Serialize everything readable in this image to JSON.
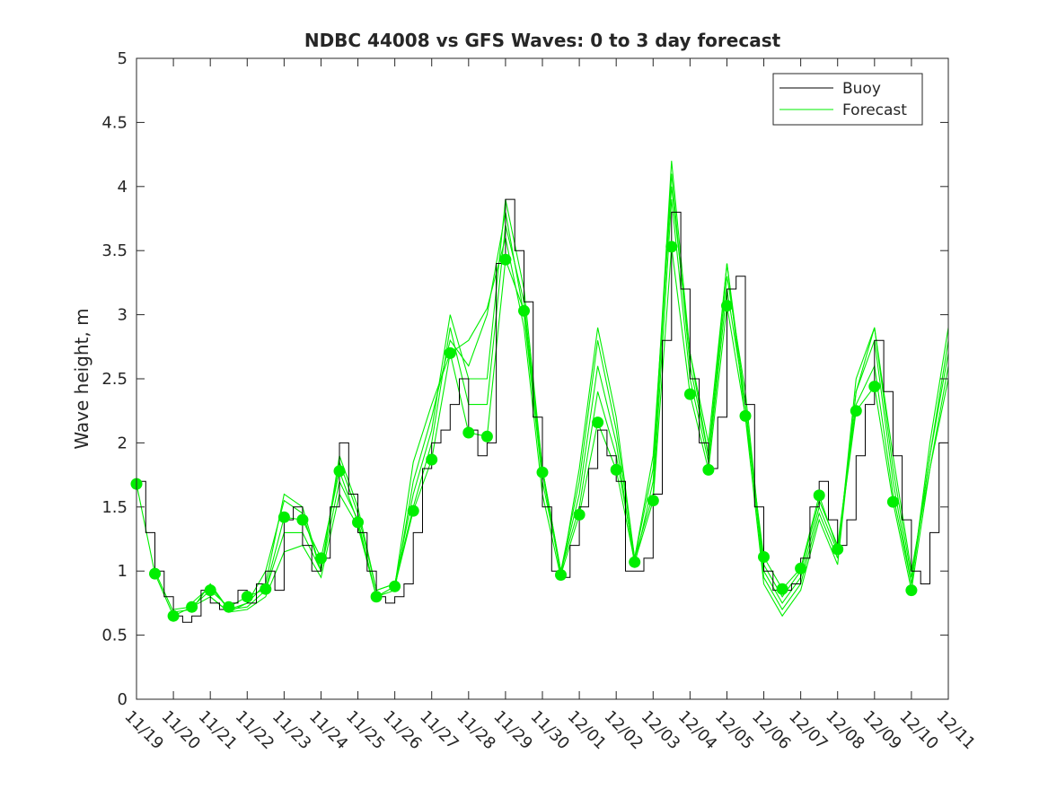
{
  "chart_data": {
    "type": "line",
    "title": "NDBC 44008 vs GFS Waves: 0 to 3 day forecast",
    "xlabel": "",
    "ylabel": "Wave height, m",
    "ylim": [
      0,
      5
    ],
    "yticks": [
      0,
      0.5,
      1,
      1.5,
      2,
      2.5,
      3,
      3.5,
      4,
      4.5,
      5
    ],
    "ytick_labels": [
      "0",
      "0.5",
      "1",
      "1.5",
      "2",
      "2.5",
      "3",
      "3.5",
      "4",
      "4.5",
      "5"
    ],
    "xlim": [
      0,
      22
    ],
    "xtick_labels": [
      "11/19",
      "11/20",
      "11/21",
      "11/22",
      "11/23",
      "11/24",
      "11/25",
      "11/26",
      "11/27",
      "11/28",
      "11/29",
      "11/30",
      "12/01",
      "12/02",
      "12/03",
      "12/04",
      "12/05",
      "12/06",
      "12/07",
      "12/08",
      "12/09",
      "12/10",
      "12/11"
    ],
    "legend": {
      "location": "top-right",
      "entries": [
        "Buoy",
        "Forecast"
      ]
    },
    "colors": {
      "buoy": "#000000",
      "forecast": "#00ee00"
    },
    "buoy": {
      "name": "Buoy",
      "x": [
        0,
        0.25,
        0.5,
        0.75,
        1,
        1.25,
        1.5,
        1.75,
        2,
        2.25,
        2.5,
        2.75,
        3,
        3.25,
        3.5,
        3.75,
        4,
        4.25,
        4.5,
        4.75,
        5,
        5.25,
        5.5,
        5.75,
        6,
        6.25,
        6.5,
        6.75,
        7,
        7.25,
        7.5,
        7.75,
        8,
        8.25,
        8.5,
        8.75,
        9,
        9.25,
        9.5,
        9.75,
        10,
        10.25,
        10.5,
        10.75,
        11,
        11.25,
        11.5,
        11.75,
        12,
        12.25,
        12.5,
        12.75,
        13,
        13.25,
        13.5,
        13.75,
        14,
        14.25,
        14.5,
        14.75,
        15,
        15.25,
        15.5,
        15.75,
        16,
        16.25,
        16.5,
        16.75,
        17,
        17.25,
        17.5,
        17.75,
        18,
        18.25,
        18.5,
        18.75,
        19,
        19.25,
        19.5,
        19.75,
        20,
        20.25,
        20.5,
        20.75,
        21,
        21.25,
        21.5,
        21.75,
        22
      ],
      "values": [
        1.7,
        1.3,
        1.0,
        0.8,
        0.65,
        0.6,
        0.65,
        0.85,
        0.75,
        0.7,
        0.75,
        0.85,
        0.75,
        0.9,
        1.0,
        0.85,
        1.4,
        1.5,
        1.2,
        1.0,
        1.1,
        1.5,
        2.0,
        1.6,
        1.3,
        1.0,
        0.8,
        0.75,
        0.8,
        0.9,
        1.3,
        1.8,
        2.0,
        2.1,
        2.3,
        2.5,
        2.1,
        1.9,
        2.0,
        3.4,
        3.9,
        3.5,
        3.1,
        2.2,
        1.5,
        1.0,
        0.95,
        1.2,
        1.5,
        1.8,
        2.1,
        1.9,
        1.7,
        1.0,
        1.0,
        1.1,
        1.6,
        2.8,
        3.8,
        3.2,
        2.5,
        2.0,
        1.8,
        2.2,
        3.2,
        3.3,
        2.3,
        1.5,
        1.0,
        0.85,
        0.85,
        0.9,
        1.1,
        1.5,
        1.7,
        1.4,
        1.2,
        1.4,
        1.9,
        2.3,
        2.8,
        2.4,
        1.9,
        1.4,
        1.0,
        0.9,
        1.3,
        2.0,
        2.5
      ]
    },
    "forecast_series": [
      {
        "x": [
          0,
          0.5,
          1,
          1.5,
          2,
          2.5,
          3,
          3.5,
          4,
          4.5,
          5,
          5.5,
          6,
          6.5,
          7,
          7.5,
          8,
          8.5,
          9,
          9.5,
          10,
          10.5,
          11,
          11.5,
          12,
          12.5,
          13,
          13.5,
          14,
          14.5,
          15,
          15.5,
          16,
          16.5,
          17,
          17.5,
          18,
          18.5,
          19,
          19.5,
          20,
          20.5,
          21,
          21.5,
          22
        ],
        "values": [
          1.68,
          0.98,
          0.65,
          0.72,
          0.85,
          0.72,
          0.8,
          0.86,
          1.42,
          1.4,
          1.1,
          1.78,
          1.38,
          0.8,
          0.88,
          1.47,
          1.87,
          2.7,
          2.08,
          2.05,
          3.43,
          3.03,
          1.77,
          0.97,
          1.44,
          2.16,
          1.79,
          1.07,
          1.55,
          3.53,
          2.38,
          1.79,
          3.07,
          2.21,
          1.11,
          0.86,
          1.02,
          1.59,
          1.17,
          2.25,
          2.44,
          1.54,
          0.85,
          1.8,
          2.6
        ]
      },
      {
        "x": [
          0.5,
          1,
          1.5,
          2,
          2.5,
          3,
          3.5,
          4,
          4.5,
          5,
          5.5,
          6,
          6.5,
          7,
          7.5,
          8,
          8.5,
          9,
          9.5,
          10,
          10.5,
          11,
          11.5,
          12,
          12.5,
          13,
          13.5,
          14,
          14.5,
          15,
          15.5,
          16,
          16.5,
          17,
          17.5,
          18,
          18.5,
          19,
          19.5,
          20,
          20.5,
          21,
          21.5,
          22
        ],
        "values": [
          1.0,
          0.68,
          0.7,
          0.9,
          0.7,
          0.75,
          1.0,
          1.55,
          1.45,
          1.0,
          1.85,
          1.45,
          0.85,
          0.9,
          1.5,
          2.0,
          2.9,
          2.3,
          2.3,
          3.7,
          3.1,
          1.8,
          1.0,
          1.5,
          2.4,
          1.9,
          1.1,
          1.6,
          3.9,
          2.5,
          1.85,
          3.2,
          2.3,
          1.05,
          0.8,
          1.0,
          1.55,
          1.2,
          2.3,
          2.6,
          1.6,
          0.9,
          1.9,
          2.8
        ]
      },
      {
        "x": [
          1,
          1.5,
          2,
          2.5,
          3,
          3.5,
          4,
          4.5,
          5,
          5.5,
          6,
          6.5,
          7,
          7.5,
          8,
          8.5,
          9,
          9.5,
          10,
          10.5,
          11,
          11.5,
          12,
          12.5,
          13,
          13.5,
          14,
          14.5,
          15,
          15.5,
          16,
          16.5,
          17,
          17.5,
          18,
          18.5,
          19,
          19.5,
          20,
          20.5,
          21,
          21.5,
          22
        ],
        "values": [
          0.7,
          0.72,
          0.8,
          0.68,
          0.75,
          0.9,
          1.6,
          1.5,
          1.0,
          1.9,
          1.5,
          0.85,
          0.9,
          1.6,
          2.1,
          3.0,
          2.5,
          2.5,
          3.9,
          3.2,
          1.8,
          1.0,
          1.6,
          2.6,
          2.0,
          1.05,
          1.7,
          4.1,
          2.6,
          1.9,
          3.3,
          2.4,
          1.0,
          0.75,
          0.95,
          1.5,
          1.15,
          2.4,
          2.8,
          1.7,
          0.9,
          2.0,
          2.9
        ]
      },
      {
        "x": [
          1.5,
          2,
          2.5,
          3,
          3.5,
          4,
          4.5,
          5,
          5.5,
          6,
          6.5,
          7,
          7.5,
          8,
          8.5,
          9,
          9.5,
          10,
          10.5,
          11,
          11.5,
          12,
          12.5,
          13,
          13.5,
          14,
          14.5,
          15,
          15.5,
          16,
          16.5,
          17,
          17.5,
          18,
          18.5,
          19,
          19.5,
          20,
          20.5,
          21,
          21.5,
          22
        ],
        "values": [
          0.75,
          0.88,
          0.7,
          0.72,
          0.85,
          1.3,
          1.3,
          1.0,
          1.7,
          1.4,
          0.8,
          0.85,
          1.7,
          2.2,
          2.8,
          2.6,
          3.0,
          3.8,
          3.0,
          1.7,
          1.0,
          1.7,
          2.8,
          2.1,
          1.1,
          1.8,
          4.2,
          2.7,
          1.9,
          3.4,
          2.3,
          0.95,
          0.7,
          0.9,
          1.45,
          1.1,
          2.5,
          2.9,
          1.8,
          0.95,
          1.9,
          2.7
        ]
      },
      {
        "x": [
          2,
          2.5,
          3,
          3.5,
          4,
          4.5,
          5,
          5.5,
          6,
          6.5,
          7,
          7.5,
          8,
          8.5,
          9,
          9.5,
          10,
          10.5,
          11,
          11.5,
          12,
          12.5,
          13,
          13.5,
          14,
          14.5,
          15,
          15.5,
          16,
          16.5,
          17,
          17.5,
          18,
          18.5,
          19,
          19.5,
          20,
          20.5,
          21,
          21.5,
          22
        ],
        "values": [
          0.8,
          0.68,
          0.7,
          0.8,
          1.15,
          1.2,
          0.95,
          1.6,
          1.35,
          0.8,
          0.88,
          1.85,
          2.3,
          2.7,
          2.8,
          3.05,
          3.6,
          2.9,
          1.6,
          0.95,
          1.8,
          2.9,
          2.2,
          1.1,
          1.9,
          4.0,
          2.7,
          2.0,
          3.4,
          2.2,
          0.9,
          0.65,
          0.85,
          1.4,
          1.05,
          2.4,
          2.9,
          1.9,
          1.0,
          1.8,
          2.5
        ]
      }
    ]
  }
}
